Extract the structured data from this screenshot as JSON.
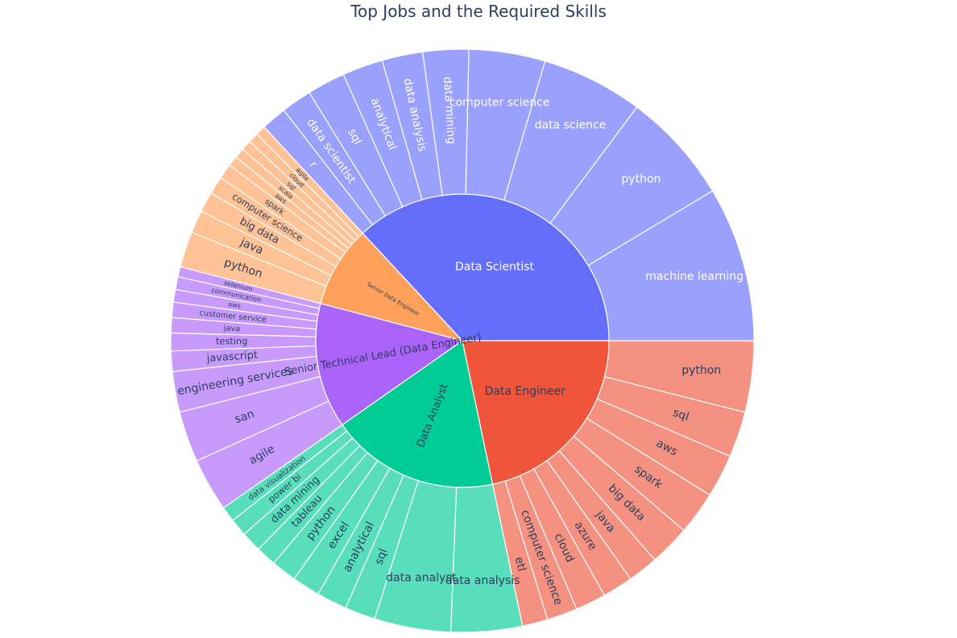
{
  "chart_data": {
    "type": "sunburst",
    "title": "Top Jobs and the Required Skills",
    "colors": {
      "Data Scientist": "#636efa",
      "Data Engineer": "#ef553b",
      "Data Analyst": "#00cc96",
      "Senior Technical Lead (Data Engineer)": "#ab63fa",
      "Senior Data Engineer": "#ffa15a"
    },
    "jobs": [
      {
        "name": "Data Scientist",
        "label": "Data Scientist",
        "skills": [
          {
            "name": "machine learning",
            "value": 30.5
          },
          {
            "name": "python",
            "value": 22
          },
          {
            "name": "data science",
            "value": 20
          },
          {
            "name": "computer science",
            "value": 15
          },
          {
            "name": "data mining",
            "value": 9
          },
          {
            "name": "data analysis",
            "value": 8
          },
          {
            "name": "analytical",
            "value": 8
          },
          {
            "name": "sql",
            "value": 7.5
          },
          {
            "name": "data scientist",
            "value": 6
          },
          {
            "name": "r",
            "value": 5
          }
        ]
      },
      {
        "name": "Senior Data Engineer",
        "label": "Senior Data Engineer",
        "skills": [
          {
            "name": "agile",
            "value": 2
          },
          {
            "name": "cloud",
            "value": 2
          },
          {
            "name": "sql",
            "value": 2
          },
          {
            "name": "scala",
            "value": 2
          },
          {
            "name": "aws",
            "value": 2
          },
          {
            "name": "spark",
            "value": 3
          },
          {
            "name": "computer science",
            "value": 3.5
          },
          {
            "name": "big data",
            "value": 4
          },
          {
            "name": "java",
            "value": 4.5
          },
          {
            "name": "python",
            "value": 7
          }
        ]
      },
      {
        "name": "Senior Technical Lead (Data Engineer)",
        "label": "Senior Technical Lead (Data Engineer)",
        "skills": [
          {
            "name": "selenium",
            "value": 2
          },
          {
            "name": "communication",
            "value": 2.5
          },
          {
            "name": "aws",
            "value": 2.5
          },
          {
            "name": "customer service",
            "value": 3
          },
          {
            "name": "java",
            "value": 3
          },
          {
            "name": "testing",
            "value": 3.5
          },
          {
            "name": "javascript",
            "value": 4
          },
          {
            "name": "engineering services",
            "value": 8
          },
          {
            "name": "san",
            "value": 10
          },
          {
            "name": "agile",
            "value": 10.5
          }
        ]
      },
      {
        "name": "Data Analyst",
        "label": "Data Analyst",
        "skills": [
          {
            "name": "data visualization",
            "value": 3
          },
          {
            "name": "power bi",
            "value": 3.5
          },
          {
            "name": "data mining",
            "value": 4
          },
          {
            "name": "tableau",
            "value": 4
          },
          {
            "name": "python",
            "value": 5
          },
          {
            "name": "excel",
            "value": 5.5
          },
          {
            "name": "analytical",
            "value": 6
          },
          {
            "name": "sql",
            "value": 6
          },
          {
            "name": "data analyst",
            "value": 15
          },
          {
            "name": "data analysis",
            "value": 14
          }
        ]
      },
      {
        "name": "Data Engineer",
        "label": "Data Engineer",
        "skills": [
          {
            "name": "etl",
            "value": 5
          },
          {
            "name": "computer science",
            "value": 6
          },
          {
            "name": "cloud",
            "value": 6
          },
          {
            "name": "azure",
            "value": 6
          },
          {
            "name": "java",
            "value": 6
          },
          {
            "name": "big data",
            "value": 8
          },
          {
            "name": "spark",
            "value": 8.5
          },
          {
            "name": "aws",
            "value": 8.5
          },
          {
            "name": "sql",
            "value": 9
          },
          {
            "name": "python",
            "value": 14
          }
        ]
      }
    ]
  }
}
